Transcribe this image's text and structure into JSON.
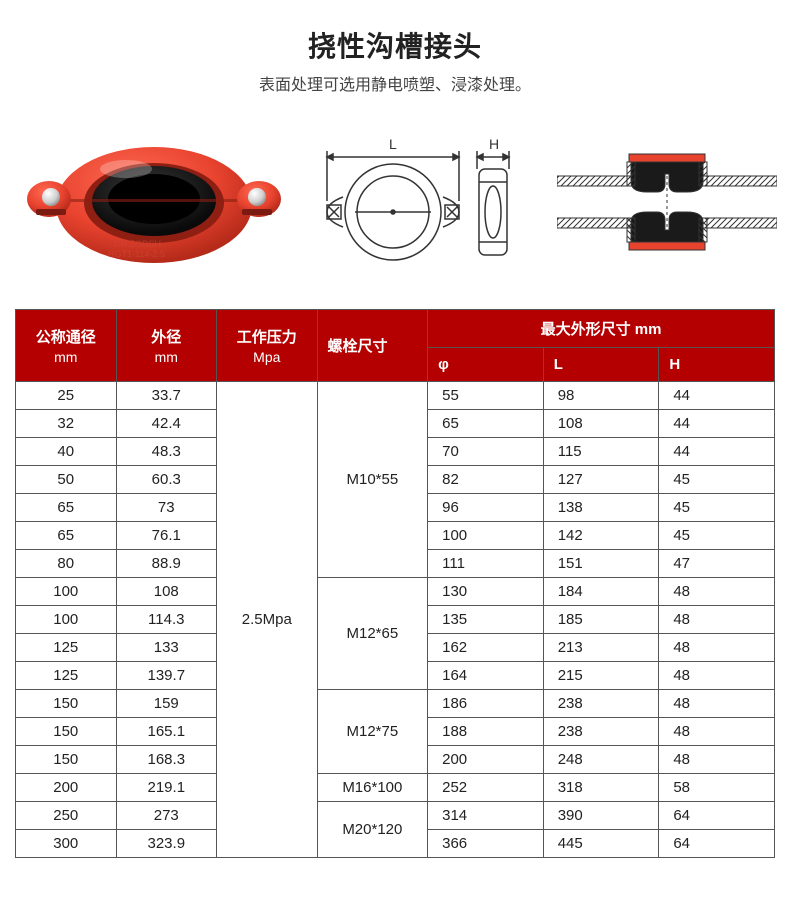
{
  "title": "挠性沟槽接头",
  "subtitle": "表面处理可选用静电喷塑、浸漆处理。",
  "colors": {
    "header_bg": "#b40000",
    "header_fg": "#ffffff",
    "border": "#555555",
    "coupling_red": "#e8432f",
    "gasket_black": "#1a1a1a",
    "bolt": "#d8d8d8"
  },
  "diagram_labels": {
    "L": "L",
    "H": "H"
  },
  "columns": {
    "nominal": {
      "label": "公称通径",
      "unit": "mm"
    },
    "od": {
      "label": "外径",
      "unit": "mm"
    },
    "pressure": {
      "label": "工作压力",
      "unit": "Mpa"
    },
    "bolt": {
      "label": "螺栓尺寸"
    },
    "dims": {
      "label": "最大外形尺寸 mm",
      "phi": "φ",
      "L": "L",
      "H": "H"
    }
  },
  "pressure_value": "2.5Mpa",
  "bolt_groups": [
    {
      "label": "M10*55",
      "span": 7
    },
    {
      "label": "M12*65",
      "span": 4
    },
    {
      "label": "M12*75",
      "span": 3
    },
    {
      "label": "M16*100",
      "span": 1
    },
    {
      "label": "M20*120",
      "span": 2
    }
  ],
  "rows": [
    {
      "dn": "25",
      "od": "33.7",
      "phi": "55",
      "L": "98",
      "H": "44"
    },
    {
      "dn": "32",
      "od": "42.4",
      "phi": "65",
      "L": "108",
      "H": "44"
    },
    {
      "dn": "40",
      "od": "48.3",
      "phi": "70",
      "L": "115",
      "H": "44"
    },
    {
      "dn": "50",
      "od": "60.3",
      "phi": "82",
      "L": "127",
      "H": "45"
    },
    {
      "dn": "65",
      "od": "73",
      "phi": "96",
      "L": "138",
      "H": "45"
    },
    {
      "dn": "65",
      "od": "76.1",
      "phi": "100",
      "L": "142",
      "H": "45"
    },
    {
      "dn": "80",
      "od": "88.9",
      "phi": "111",
      "L": "151",
      "H": "47"
    },
    {
      "dn": "100",
      "od": "108",
      "phi": "130",
      "L": "184",
      "H": "48"
    },
    {
      "dn": "100",
      "od": "114.3",
      "phi": "135",
      "L": "185",
      "H": "48"
    },
    {
      "dn": "125",
      "od": "133",
      "phi": "162",
      "L": "213",
      "H": "48"
    },
    {
      "dn": "125",
      "od": "139.7",
      "phi": "164",
      "L": "215",
      "H": "48"
    },
    {
      "dn": "150",
      "od": "159",
      "phi": "186",
      "L": "238",
      "H": "48"
    },
    {
      "dn": "150",
      "od": "165.1",
      "phi": "188",
      "L": "238",
      "H": "48"
    },
    {
      "dn": "150",
      "od": "168.3",
      "phi": "200",
      "L": "248",
      "H": "48"
    },
    {
      "dn": "200",
      "od": "219.1",
      "phi": "252",
      "L": "318",
      "H": "58"
    },
    {
      "dn": "250",
      "od": "273",
      "phi": "314",
      "L": "390",
      "H": "64"
    },
    {
      "dn": "300",
      "od": "323.9",
      "phi": "366",
      "L": "445",
      "H": "64"
    }
  ]
}
